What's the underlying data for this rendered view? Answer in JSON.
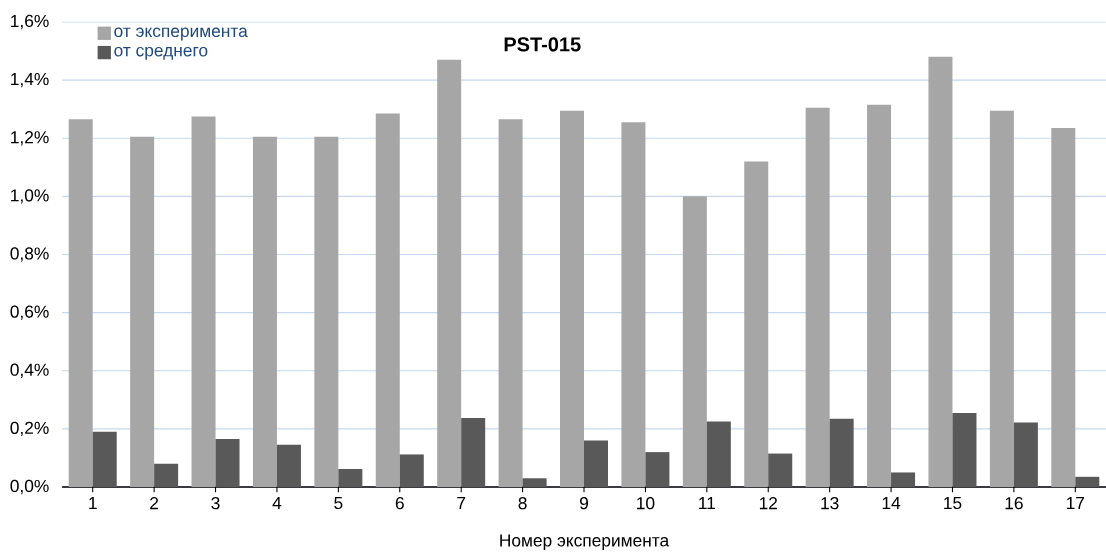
{
  "chart_data": {
    "type": "bar",
    "title": "PST-015",
    "xlabel": "Номер эксперимента",
    "categories": [
      "1",
      "2",
      "3",
      "4",
      "5",
      "6",
      "7",
      "8",
      "9",
      "10",
      "11",
      "12",
      "13",
      "14",
      "15",
      "16",
      "17"
    ],
    "series": [
      {
        "name": "от эксперимента",
        "color": "#a6a6a6",
        "values": [
          1.265,
          1.205,
          1.275,
          1.205,
          1.205,
          1.285,
          1.47,
          1.265,
          1.295,
          1.255,
          1.0,
          1.12,
          1.305,
          1.315,
          1.48,
          1.295,
          1.235
        ]
      },
      {
        "name": "от среднего",
        "color": "#595959",
        "values": [
          0.19,
          0.08,
          0.165,
          0.145,
          0.062,
          0.112,
          0.237,
          0.03,
          0.16,
          0.12,
          0.225,
          0.115,
          0.235,
          0.05,
          0.255,
          0.222,
          0.035
        ]
      }
    ],
    "ylim": [
      0,
      1.6
    ],
    "yticks": [
      {
        "value": 0,
        "label": "0,0%"
      },
      {
        "value": 0.2,
        "label": "0,2%"
      },
      {
        "value": 0.4,
        "label": "0,4%"
      },
      {
        "value": 0.6,
        "label": "0,6%"
      },
      {
        "value": 0.8,
        "label": "0,8%"
      },
      {
        "value": 1.0,
        "label": "1,0%"
      },
      {
        "value": 1.2,
        "label": "1,2%"
      },
      {
        "value": 1.4,
        "label": "1,4%"
      },
      {
        "value": 1.6,
        "label": "1,6%"
      }
    ],
    "grid": "y",
    "legend": "top left"
  }
}
